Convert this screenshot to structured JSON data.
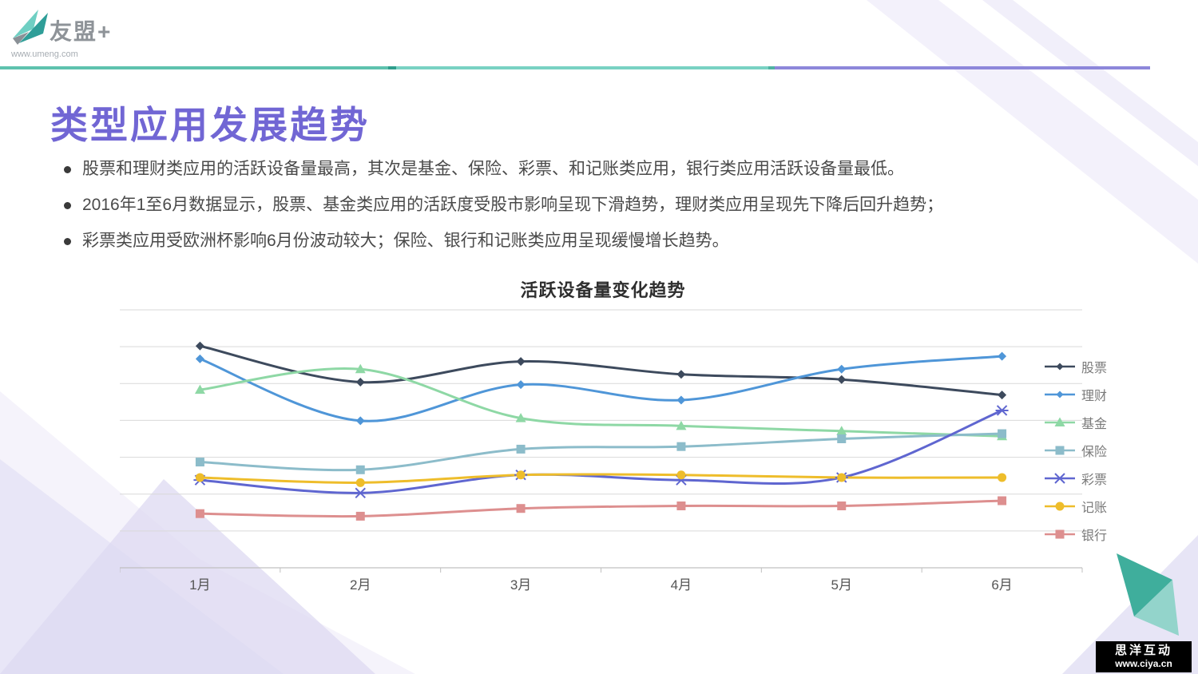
{
  "header": {
    "logo_text": "友盟+",
    "logo_url": "www.umeng.com"
  },
  "title": "类型应用发展趋势",
  "bullets": [
    "股票和理财类应用的活跃设备量最高，其次是基金、保险、彩票、和记账类应用，银行类应用活跃设备量最低。",
    "2016年1至6月数据显示，股票、基金类应用的活跃度受股市影响呈现下滑趋势，理财类应用呈现先下降后回升趋势；",
    "彩票类应用受欧洲杯影响6月份波动较大；保险、银行和记账类应用呈现缓慢增长趋势。"
  ],
  "chart_data": {
    "type": "line",
    "title": "活跃设备量变化趋势",
    "categories": [
      "1月",
      "2月",
      "3月",
      "4月",
      "5月",
      "6月"
    ],
    "xlabel": "",
    "ylabel": "",
    "ylim": [
      0,
      100
    ],
    "grid": true,
    "legend_position": "right",
    "series": [
      {
        "name": "股票",
        "color": "#3d4a5d",
        "marker": "diamond",
        "values": [
          86,
          72,
          80,
          75,
          73,
          67
        ]
      },
      {
        "name": "理财",
        "color": "#4f96d8",
        "marker": "diamond",
        "values": [
          81,
          57,
          71,
          65,
          77,
          82
        ]
      },
      {
        "name": "基金",
        "color": "#8ed8a5",
        "marker": "triangle",
        "values": [
          69,
          77,
          58,
          55,
          53,
          51
        ]
      },
      {
        "name": "保险",
        "color": "#8cbcca",
        "marker": "square",
        "values": [
          41,
          38,
          46,
          47,
          50,
          52
        ]
      },
      {
        "name": "彩票",
        "color": "#5f66d0",
        "marker": "x",
        "values": [
          34,
          29,
          36,
          34,
          35,
          61
        ]
      },
      {
        "name": "记账",
        "color": "#eebd2b",
        "marker": "circle",
        "values": [
          35,
          33,
          36,
          36,
          35,
          35
        ]
      },
      {
        "name": "银行",
        "color": "#dd8f8f",
        "marker": "square",
        "values": [
          21,
          20,
          23,
          24,
          24,
          26
        ]
      }
    ]
  },
  "watermark": {
    "line1": "思洋互动",
    "line2": "www.ciya.cn"
  },
  "colors": {
    "title_accent": "#7166d4",
    "divider_green": "#5ec2ae",
    "divider_teal": "#79d2c3",
    "divider_purple": "#8d87da",
    "grid_line": "#d9d9d9",
    "axis_line": "#c0c0c0"
  }
}
